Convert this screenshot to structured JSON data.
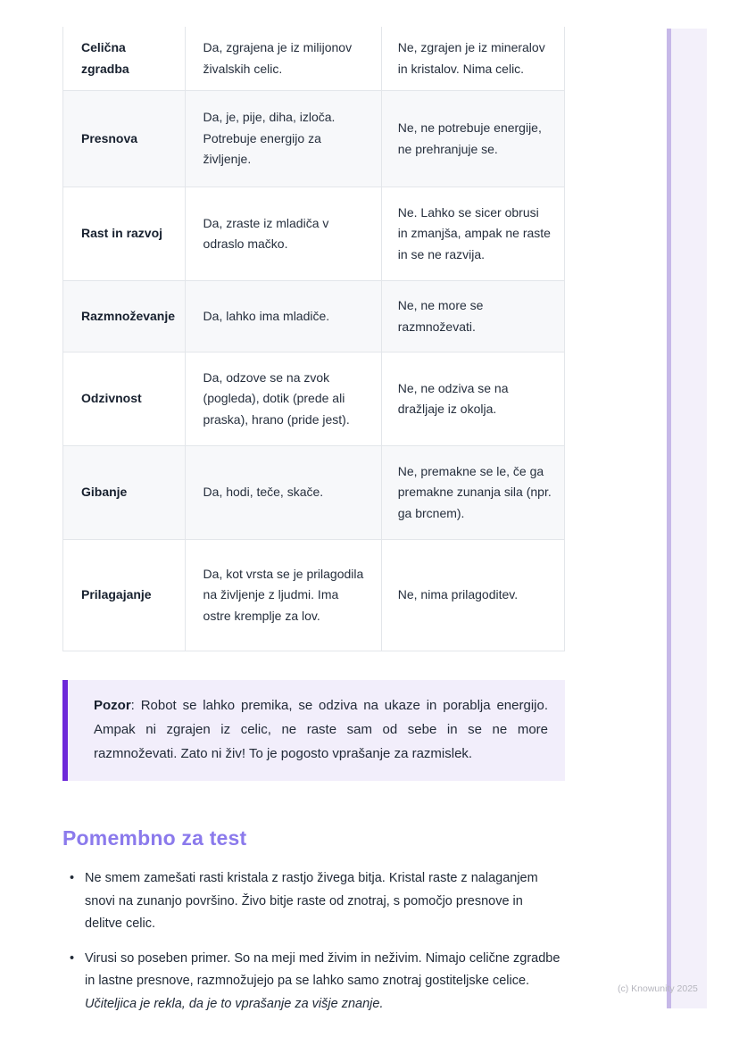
{
  "table": {
    "rows": [
      {
        "label": "Celična zgradba",
        "yes": "Da, zgrajena je iz milijonov živalskih celic.",
        "no": "Ne, zgrajen je iz mineralov in kristalov. Nima celic."
      },
      {
        "label": "Presnova",
        "yes": "Da, je, pije, diha, izloča. Potrebuje energijo za življenje.",
        "no": "Ne, ne potrebuje energije, ne prehranjuje se."
      },
      {
        "label": "Rast in razvoj",
        "yes": "Da, zraste iz mladiča v odraslo mačko.",
        "no": "Ne. Lahko se sicer obrusi in zmanjša, ampak ne raste in se ne razvija."
      },
      {
        "label": "Razmnoževanje",
        "yes": "Da, lahko ima mladiče.",
        "no": "Ne, ne more se razmnoževati."
      },
      {
        "label": "Odzivnost",
        "yes": "Da, odzove se na zvok (pogleda), dotik (prede ali praska), hrano (pride jest).",
        "no": "Ne, ne odziva se na dražljaje iz okolja."
      },
      {
        "label": "Gibanje",
        "yes": "Da, hodi, teče, skače.",
        "no": "Ne, premakne se le, če ga premakne zunanja sila (npr. ga brcnem)."
      },
      {
        "label": "Prilagajanje",
        "yes": "Da, kot vrsta se je prilagodila na življenje z ljudmi. Ima ostre kremplje za lov.",
        "no": "Ne, nima prilagoditev."
      }
    ]
  },
  "callout": {
    "label": "Pozor",
    "text": ": Robot se lahko premika, se odziva na ukaze in porablja energijo. Ampak ni zgrajen iz celic, ne raste sam od sebe in se ne more razmnoževati. Zato ni živ! To je pogosto vprašanje za razmislek.",
    "accent_color": "#6d28d9",
    "background_color": "#f2eefb"
  },
  "section": {
    "heading": "Pomembno za test",
    "heading_color": "#8b7aec",
    "bullets": [
      {
        "marker": "•",
        "text": "Ne smem zamešati rasti kristala z rastjo živega bitja. Kristal raste z nalaganjem snovi na zunanjo površino. Živo bitje raste od znotraj, s pomočjo presnove in delitve celic.",
        "italic_suffix": ""
      },
      {
        "marker": "•",
        "text": "Virusi so poseben primer. So na meji med živim in neživim. Nimajo celične zgradbe in lastne presnove, razmnožujejo pa se lahko samo znotraj gostiteljske celice. ",
        "italic_suffix": "Učiteljica je rekla, da je to vprašanje za višje znanje."
      }
    ]
  },
  "ribbon": {
    "fill_color": "#f3f0fa",
    "edge_color": "#c6b8e8"
  },
  "watermark": "(c) Knowunity 2025"
}
